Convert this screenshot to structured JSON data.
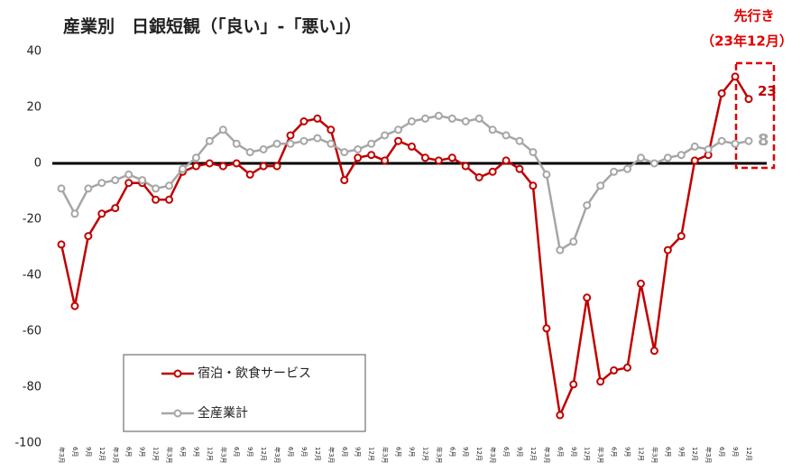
{
  "chart_data": {
    "type": "line",
    "title": "産業別　日銀短観（「良い」-「悪い」）",
    "annotations": [
      "先行き",
      "（23年12月）"
    ],
    "categories": [
      "年3月",
      "6月",
      "9月",
      "12月",
      "年3月",
      "6月",
      "9月",
      "12月",
      "年3月",
      "6月",
      "9月",
      "12月",
      "年3月",
      "6月",
      "9月",
      "12月",
      "年3月",
      "6月",
      "9月",
      "12月",
      "年3月",
      "6月",
      "9月",
      "12月",
      "年3月",
      "6月",
      "9月",
      "12月",
      "年3月",
      "6月",
      "9月",
      "12月",
      "年3月",
      "6月",
      "9月",
      "12月",
      "年3月",
      "6月",
      "9月",
      "12月",
      "年3月",
      "6月",
      "9月",
      "12月",
      "年3月",
      "6月",
      "9月",
      "12月",
      "年3月",
      "6月",
      "9月",
      "12月"
    ],
    "series": [
      {
        "name": "宿泊・飲食サービス",
        "color": "#c00000",
        "values": [
          -29,
          -51,
          -26,
          -18,
          -16,
          -7,
          -7,
          -13,
          -13,
          -3,
          -1,
          0,
          -1,
          0,
          -4,
          -1,
          -1,
          10,
          15,
          16,
          12,
          -6,
          2,
          3,
          1,
          8,
          6,
          2,
          1,
          2,
          -1,
          -5,
          -3,
          1,
          -2,
          -8,
          -59,
          -90,
          -79,
          -48,
          -78,
          -74,
          -73,
          -43,
          -67,
          -31,
          -26,
          1,
          3,
          25,
          31,
          23
        ]
      },
      {
        "name": "全産業計",
        "color": "#a6a6a6",
        "values": [
          -9,
          -18,
          -9,
          -7,
          -6,
          -4,
          -6,
          -9,
          -8,
          -2,
          2,
          8,
          12,
          7,
          4,
          5,
          7,
          7,
          8,
          9,
          7,
          4,
          5,
          7,
          10,
          12,
          15,
          16,
          17,
          16,
          15,
          16,
          12,
          10,
          8,
          4,
          -4,
          -31,
          -28,
          -15,
          -8,
          -3,
          -2,
          2,
          0,
          2,
          3,
          6,
          5,
          8,
          7,
          8
        ]
      }
    ],
    "ylim": [
      -100,
      40
    ],
    "yticks": [
      -100,
      -80,
      -60,
      -40,
      -20,
      0,
      20,
      40
    ],
    "legend": "lower left",
    "zero_line": true,
    "label_last": true,
    "highlight_last": true
  }
}
